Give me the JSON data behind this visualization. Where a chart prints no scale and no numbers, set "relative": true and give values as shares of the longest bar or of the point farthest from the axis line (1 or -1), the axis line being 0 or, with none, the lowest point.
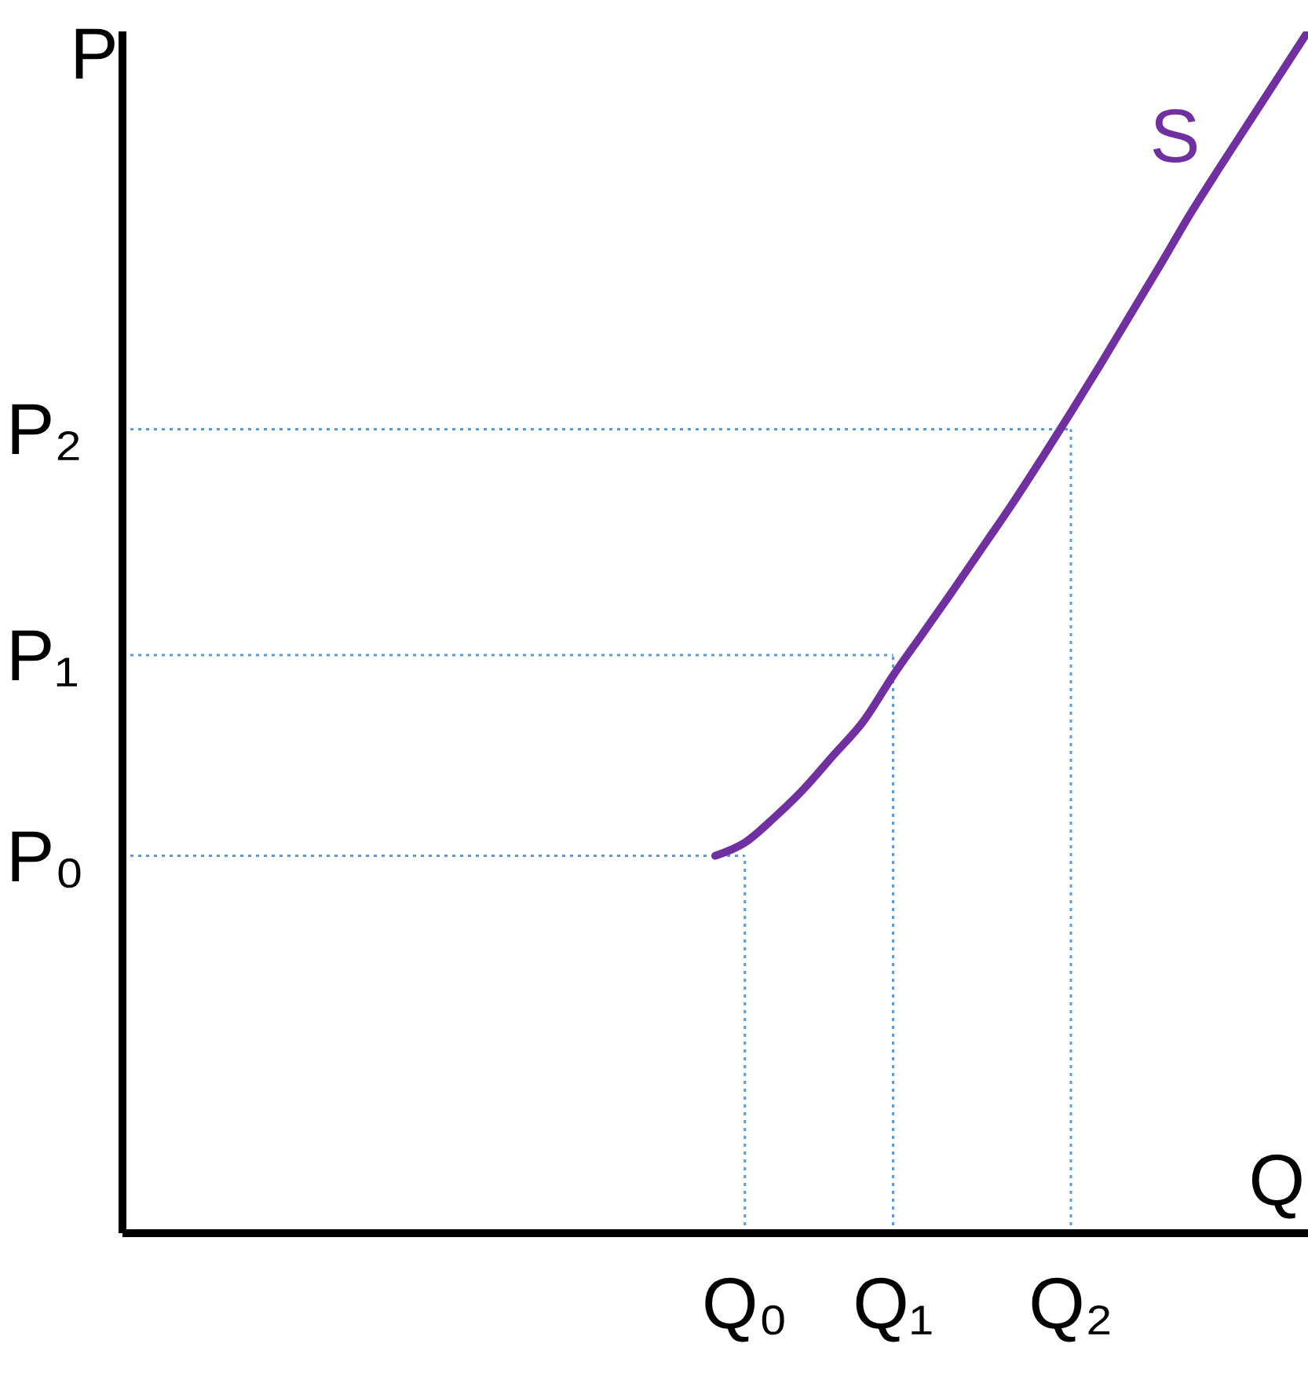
{
  "chart_data": {
    "type": "line",
    "xlabel": "Q",
    "ylabel": "P",
    "relative": true,
    "categories": [
      null,
      null,
      null,
      null,
      null,
      null,
      null,
      null,
      null,
      null,
      null,
      null,
      null,
      null,
      null,
      null,
      null,
      null,
      null,
      null,
      null,
      "Q₀",
      null,
      null,
      null,
      null,
      "Q₁",
      null,
      null,
      null,
      null,
      null,
      "Q₂",
      null,
      null,
      null,
      null,
      null,
      null,
      null,
      null
    ],
    "series": [
      {
        "name": "S",
        "color": "#7030a0",
        "values": [
          null,
          null,
          null,
          null,
          null,
          null,
          null,
          null,
          null,
          null,
          null,
          null,
          null,
          null,
          null,
          null,
          null,
          null,
          null,
          null,
          0.314,
          0.325,
          0.346,
          0.37,
          0.398,
          0.426,
          0.464,
          0.499,
          0.534,
          0.57,
          0.606,
          0.644,
          0.683,
          0.723,
          0.764,
          0.805,
          0.847,
          0.886,
          0.924,
          0.962,
          1.0
        ]
      }
    ],
    "ref_lines": [
      {
        "axis": "y",
        "value": 0.314,
        "label": "P₀",
        "color": "#5b9bd5",
        "line_style": "dotted"
      },
      {
        "axis": "y",
        "value": 0.481,
        "label": "P₁",
        "color": "#5b9bd5",
        "line_style": "dotted"
      },
      {
        "axis": "y",
        "value": 0.669,
        "label": "P₂",
        "color": "#5b9bd5",
        "line_style": "dotted"
      },
      {
        "axis": "x",
        "value": "Q₀",
        "color": "#5b9bd5",
        "line_style": "dotted"
      },
      {
        "axis": "x",
        "value": "Q₁",
        "color": "#5b9bd5",
        "line_style": "dotted"
      },
      {
        "axis": "x",
        "value": "Q₂",
        "color": "#5b9bd5",
        "line_style": "dotted"
      }
    ],
    "marker": "none",
    "line_style": "solid"
  }
}
